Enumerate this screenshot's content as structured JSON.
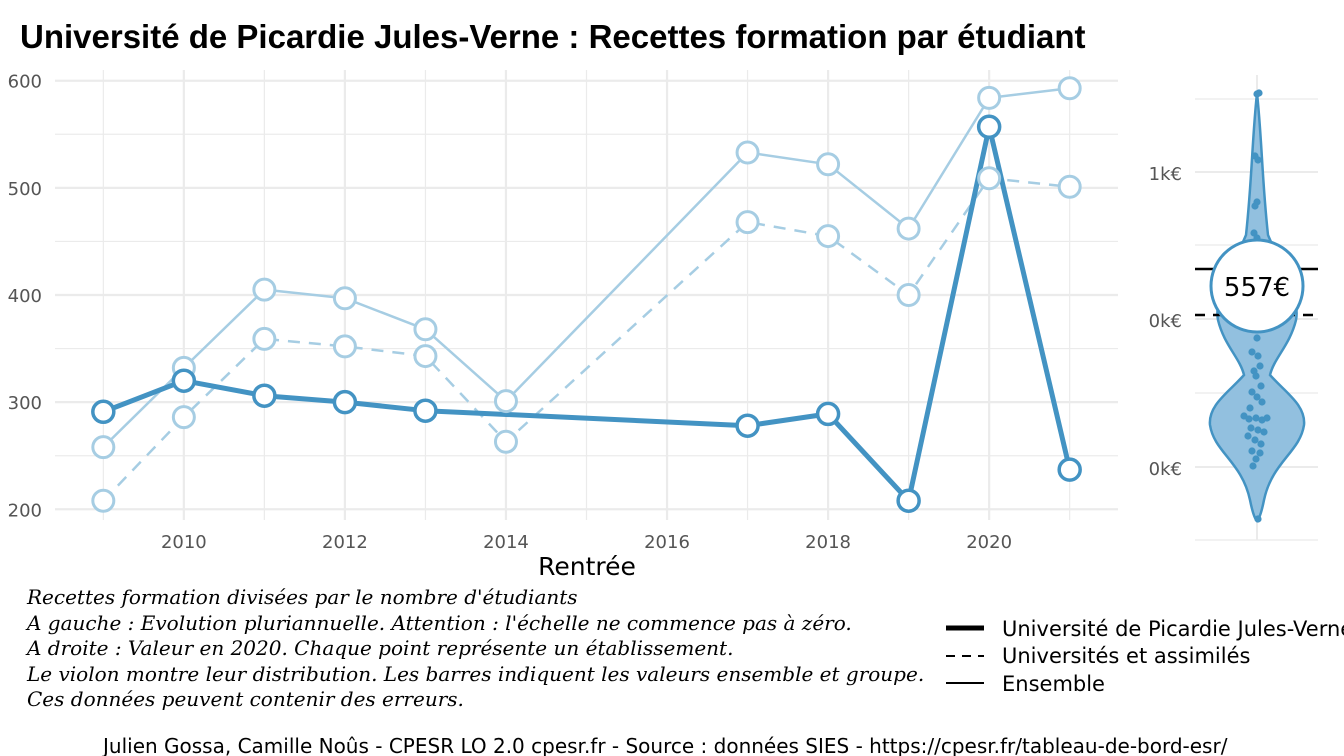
{
  "title": "Université de Picardie Jules-Verne  :  Recettes formation par étudiant",
  "colors": {
    "primary": "#4393c3",
    "light": "#a6cde3",
    "violin_fill": "#92c0df",
    "grid": "#ebebeb"
  },
  "chart_data": [
    {
      "type": "line",
      "xlabel": "Rentrée",
      "ylabel": "",
      "xlim": [
        2008.4,
        2021.6
      ],
      "ylim": [
        190,
        610
      ],
      "x_ticks": [
        2010,
        2012,
        2014,
        2016,
        2018,
        2020
      ],
      "y_ticks": [
        200,
        300,
        400,
        500,
        600
      ],
      "grid": true,
      "series": [
        {
          "name": "Université de Picardie Jules-Verne",
          "style": "thick-solid",
          "x": [
            2009,
            2010,
            2011,
            2012,
            2013,
            2017,
            2018,
            2019,
            2020,
            2021
          ],
          "y": [
            291,
            320,
            306,
            300,
            292,
            278,
            289,
            208,
            557,
            237
          ]
        },
        {
          "name": "Universités et assimilés",
          "style": "dashed",
          "x": [
            2009,
            2010,
            2011,
            2012,
            2013,
            2014,
            2017,
            2018,
            2019,
            2020,
            2021
          ],
          "y": [
            208,
            286,
            359,
            352,
            343,
            263,
            468,
            455,
            400,
            509,
            501
          ]
        },
        {
          "name": "Ensemble",
          "style": "solid",
          "x": [
            2009,
            2010,
            2011,
            2012,
            2013,
            2014,
            2017,
            2018,
            2019,
            2020,
            2021
          ],
          "y": [
            258,
            332,
            405,
            397,
            368,
            301,
            533,
            522,
            462,
            584,
            593
          ]
        }
      ]
    },
    {
      "type": "violin",
      "year": 2020,
      "y_ticks": [
        "0k€",
        "0k€",
        "1k€"
      ],
      "highlight_label": "557€",
      "bars": [
        "Ensemble",
        "Universités et assimilés"
      ]
    }
  ],
  "notes": [
    "Recettes formation divisées par le nombre d'étudiants",
    "A gauche : Evolution pluriannuelle. Attention : l'échelle ne commence pas à zéro.",
    "A droite : Valeur en 2020. Chaque point représente un établissement.",
    "Le violon montre leur distribution. Les barres indiquent les valeurs ensemble et groupe.",
    "Ces données peuvent contenir des erreurs."
  ],
  "legend": [
    {
      "label": "Université de Picardie Jules-Verne",
      "style": "thick-solid"
    },
    {
      "label": "Universités et assimilés",
      "style": "dashed"
    },
    {
      "label": "Ensemble",
      "style": "solid"
    }
  ],
  "caption": "Julien Gossa, Camille Noûs - CPESR LO 2.0 cpesr.fr - Source : données SIES - https://cpesr.fr/tableau-de-bord-esr/"
}
